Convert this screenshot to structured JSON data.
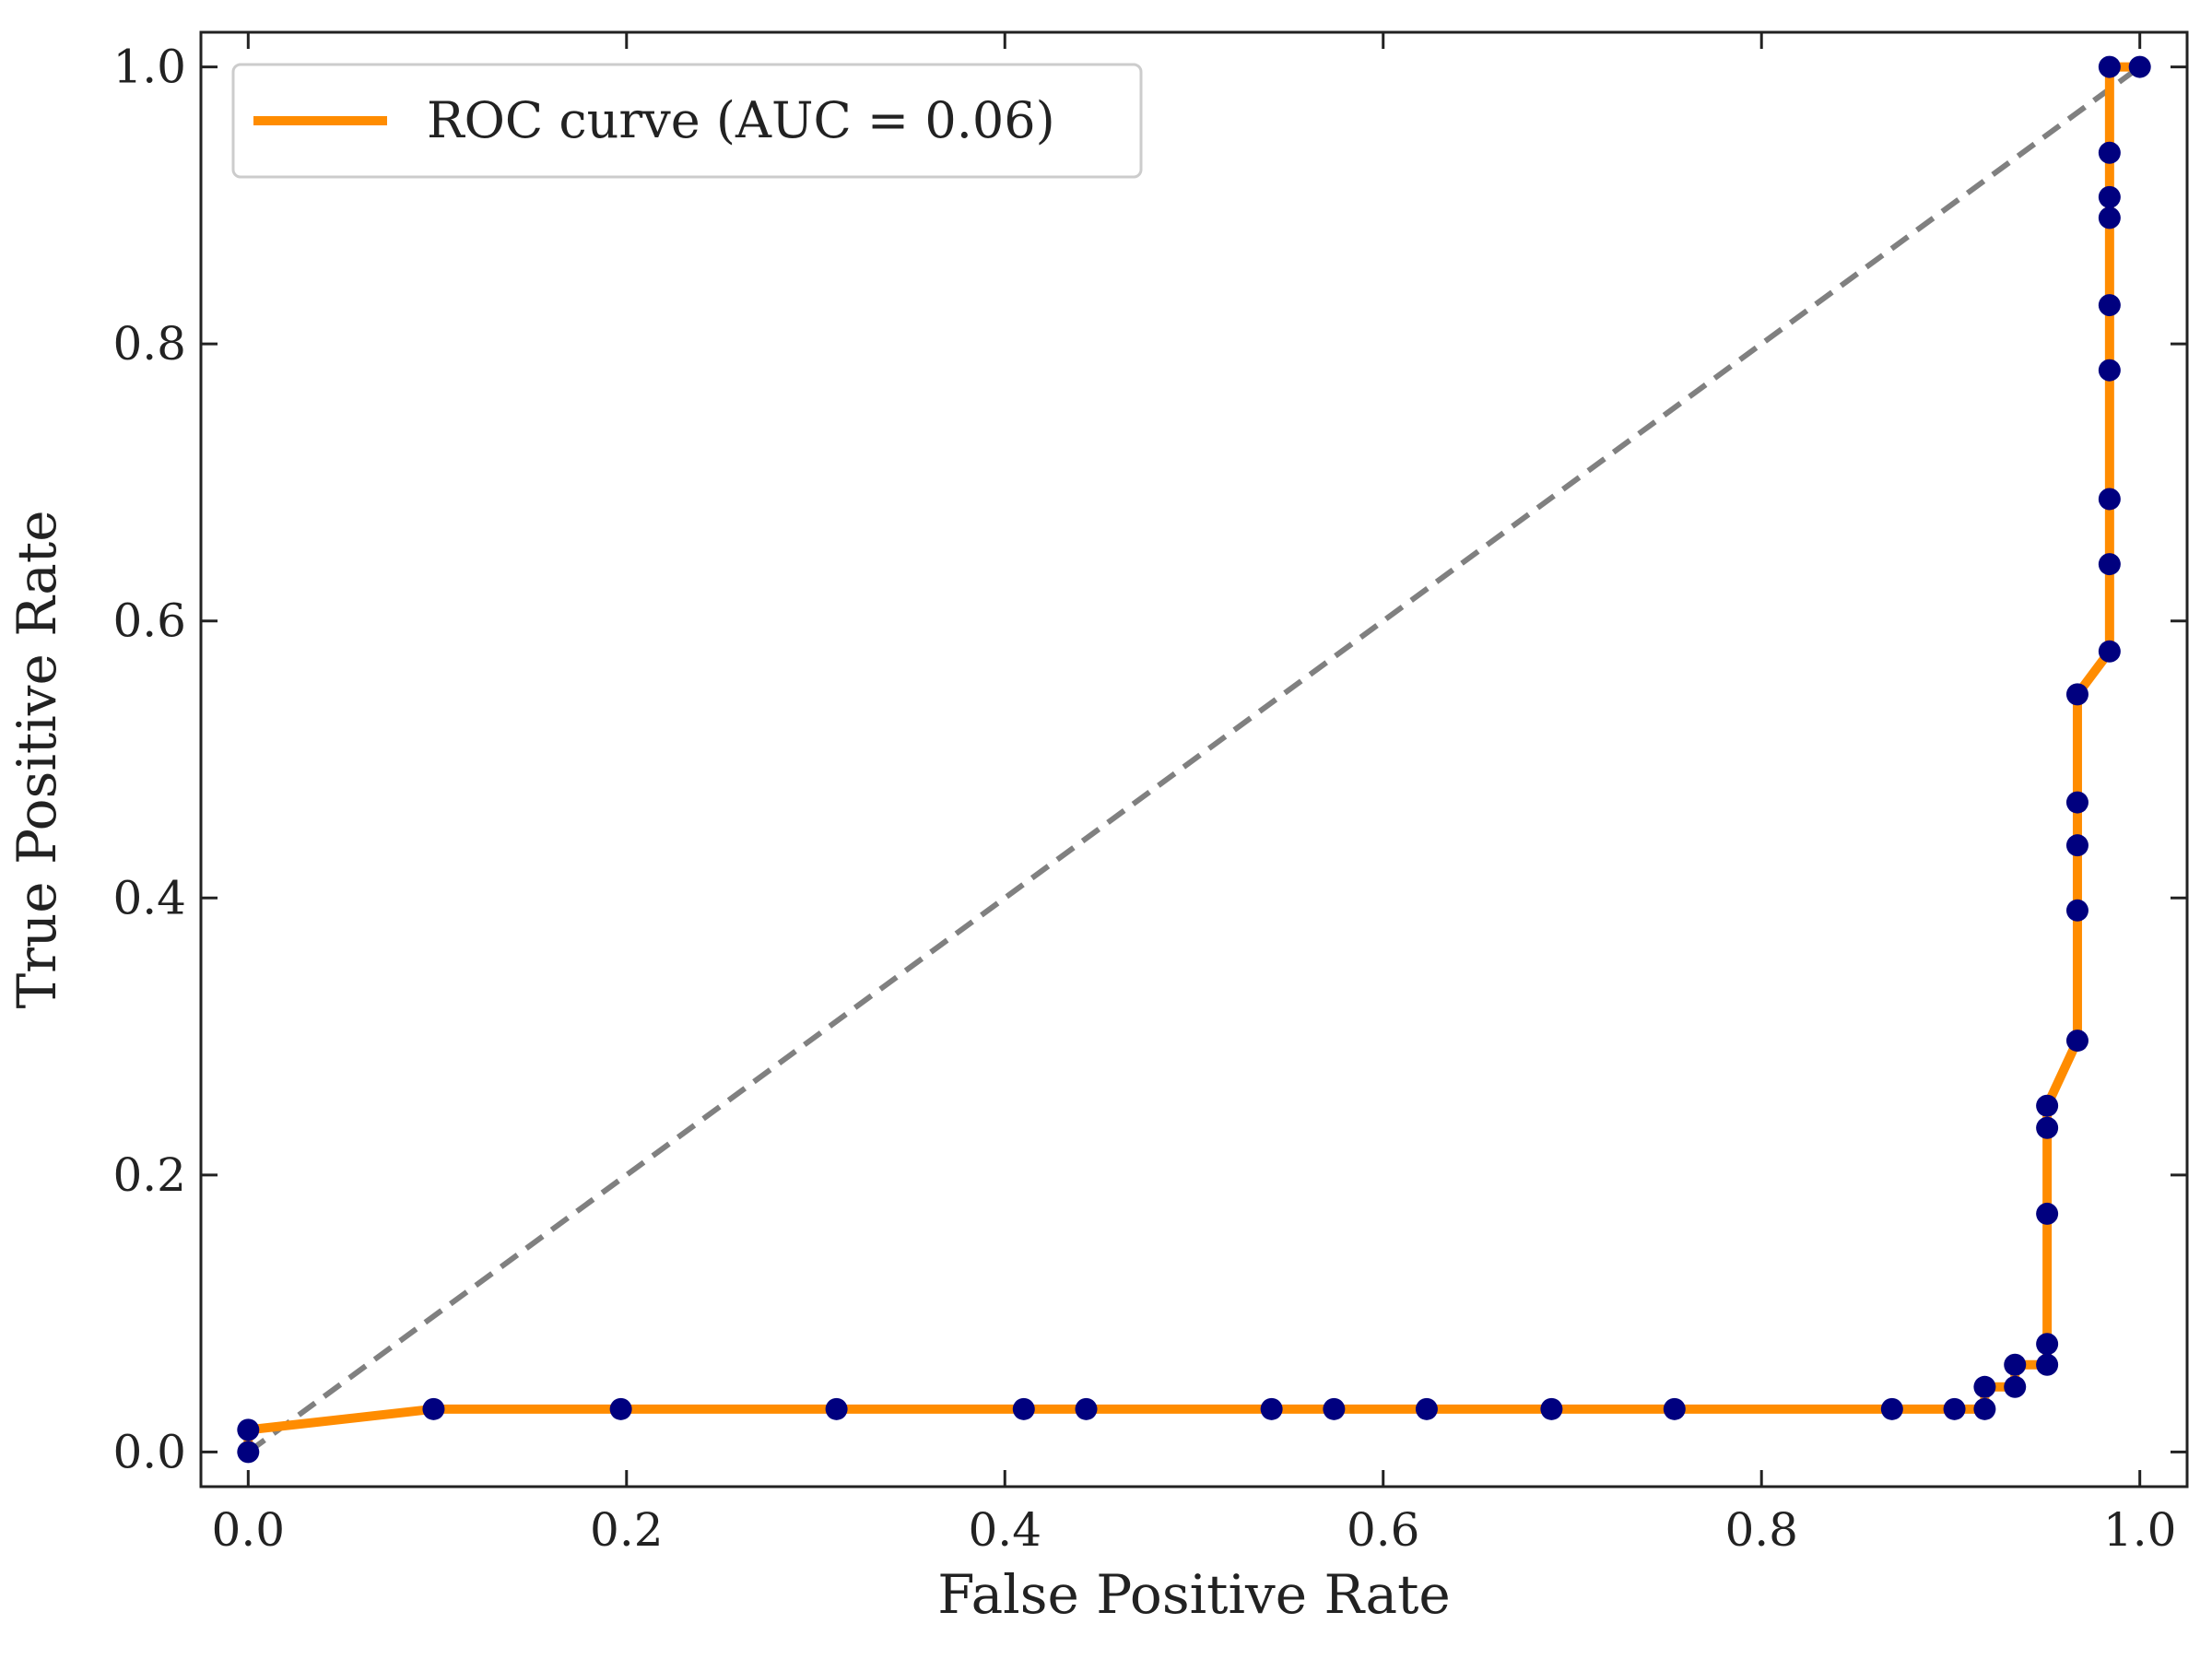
{
  "chart_data": {
    "type": "line",
    "title": "",
    "xlabel": "False Positive Rate",
    "ylabel": "True Positive Rate",
    "xlim": [
      -0.025,
      1.025
    ],
    "ylim": [
      -0.025,
      1.025
    ],
    "xticks": [
      {
        "value": 0.0,
        "label": "0.0"
      },
      {
        "value": 0.2,
        "label": "0.2"
      },
      {
        "value": 0.4,
        "label": "0.4"
      },
      {
        "value": 0.6,
        "label": "0.6"
      },
      {
        "value": 0.8,
        "label": "0.8"
      },
      {
        "value": 1.0,
        "label": "1.0"
      }
    ],
    "yticks": [
      {
        "value": 0.0,
        "label": "0.0"
      },
      {
        "value": 0.2,
        "label": "0.2"
      },
      {
        "value": 0.4,
        "label": "0.4"
      },
      {
        "value": 0.6,
        "label": "0.6"
      },
      {
        "value": 0.8,
        "label": "0.8"
      },
      {
        "value": 1.0,
        "label": "1.0"
      }
    ],
    "grid": false,
    "legend_position": "top-left",
    "series": [
      {
        "name": "ROC curve (AUC = 0.06)",
        "color": "#ff8c00",
        "marker_color": "#00007f",
        "x": [
          0.0,
          0.0,
          0.098,
          0.197,
          0.311,
          0.41,
          0.443,
          0.541,
          0.574,
          0.623,
          0.689,
          0.754,
          0.869,
          0.902,
          0.918,
          0.918,
          0.934,
          0.934,
          0.951,
          0.951,
          0.951,
          0.951,
          0.951,
          0.967,
          0.967,
          0.967,
          0.967,
          0.967,
          0.984,
          0.984,
          0.984,
          0.984,
          0.984,
          0.984,
          0.984,
          0.984,
          0.984,
          1.0
        ],
        "y": [
          0.0,
          0.016,
          0.031,
          0.031,
          0.031,
          0.031,
          0.031,
          0.031,
          0.031,
          0.031,
          0.031,
          0.031,
          0.031,
          0.031,
          0.031,
          0.047,
          0.047,
          0.063,
          0.063,
          0.078,
          0.172,
          0.234,
          0.25,
          0.297,
          0.391,
          0.438,
          0.469,
          0.547,
          0.578,
          0.641,
          0.688,
          0.781,
          0.828,
          0.891,
          0.906,
          0.938,
          1.0,
          1.0
        ]
      },
      {
        "name": "",
        "style": "dashed",
        "color": "#808080",
        "x": [
          0.0,
          1.0
        ],
        "y": [
          0.0,
          1.0
        ]
      }
    ]
  }
}
